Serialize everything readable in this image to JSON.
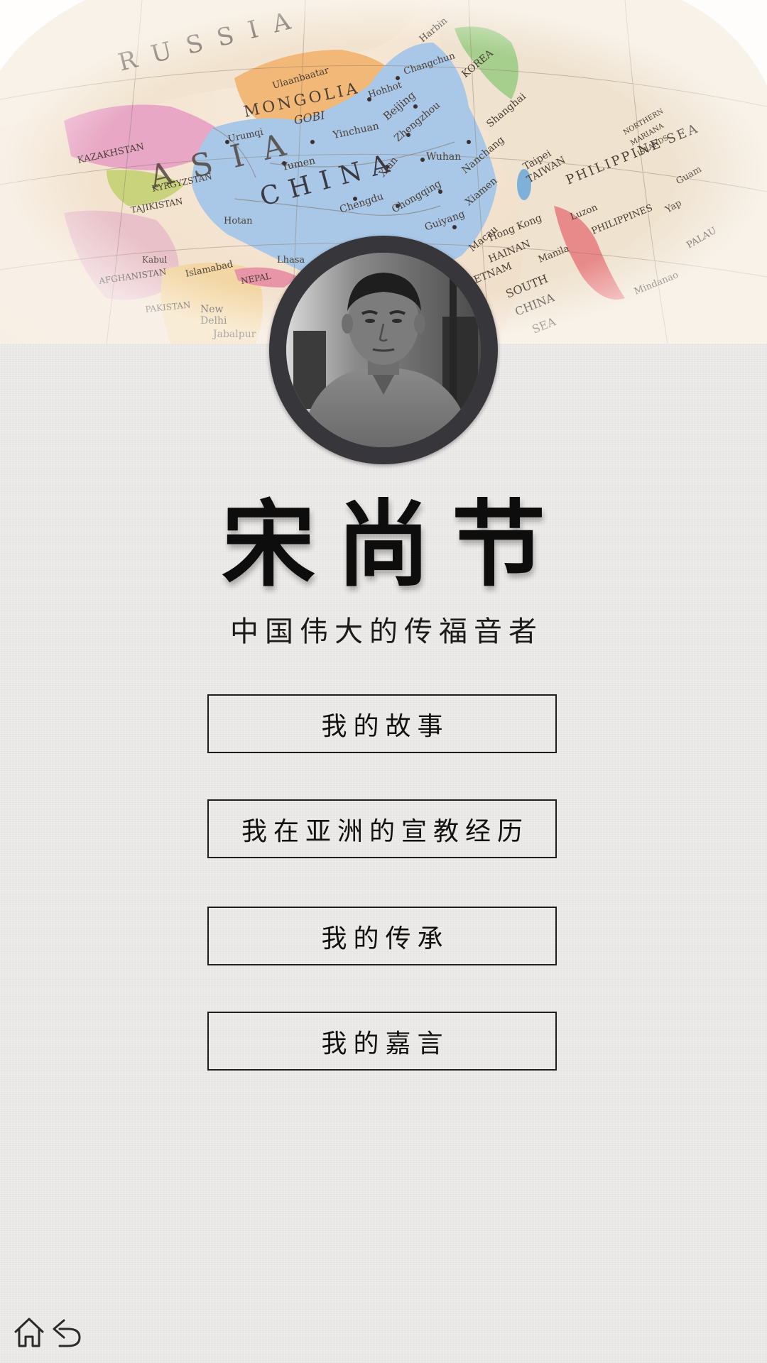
{
  "hero": {
    "map_labels": [
      "RUSSIA",
      "MONGOLIA",
      "GOBI",
      "ASIA",
      "CHINA",
      "KAZAKHSTAN",
      "KYRGYZSTAN",
      "TAJIKISTAN",
      "AFGHANISTAN",
      "PAKISTAN",
      "NEPAL",
      "Lhasa",
      "New Delhi",
      "Jabalpur",
      "Islamabad",
      "Kabul",
      "Hotan",
      "Urumqi",
      "Yumen",
      "Yinchuan",
      "Beijing",
      "Harbin",
      "Changchun",
      "Hohhot",
      "Zhengzhou",
      "Xian",
      "Wuhan",
      "Chengdu",
      "Chongqing",
      "Guiyang",
      "Nanchang",
      "Xiamen",
      "Shanghai",
      "Hong Kong",
      "Macau",
      "HAINAN",
      "Taipei",
      "TAIWAN",
      "KOREA",
      "PHILIPPINE SEA",
      "Luzon",
      "PHILIPPINES",
      "Manila",
      "Mindanao",
      "NORTHERN MARIANA ISLANDS",
      "Guam",
      "Yap",
      "PALAU",
      "SOUTH CHINA SEA",
      "VIETNAM",
      "Ulaanbaatar"
    ]
  },
  "profile": {
    "name": "宋尚节",
    "subtitle": "中国伟大的传福音者"
  },
  "menu": [
    {
      "label": "我的故事"
    },
    {
      "label": "我在亚洲的宣教经历"
    },
    {
      "label": "我的传承"
    },
    {
      "label": "我的嘉言"
    }
  ],
  "nav": {
    "home_icon": "home-icon",
    "back_icon": "back-arrow-icon"
  },
  "colors": {
    "page_background": "#ebe9e7",
    "text": "#0d0d0d",
    "button_border": "#1f1f1f",
    "avatar_ring": "#37363a"
  }
}
